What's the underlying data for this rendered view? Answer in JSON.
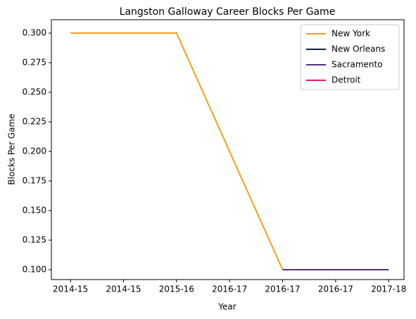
{
  "chart_data": {
    "type": "line",
    "title": "Langston Galloway Career Blocks Per Game",
    "x_label": "Year",
    "y_label": "Blocks Per Game",
    "categories": [
      "2014-15",
      "2014-15",
      "2015-16",
      "2016-17",
      "2016-17",
      "2016-17",
      "2017-18"
    ],
    "series": [
      {
        "name": "New York",
        "color": "#f5a01e",
        "values": [
          0.3,
          0.3,
          0.3,
          0.2,
          0.1,
          null,
          null
        ]
      },
      {
        "name": "New Orleans",
        "color": "#0c2340",
        "values": [
          null,
          null,
          null,
          null,
          0.1,
          null,
          null
        ]
      },
      {
        "name": "Sacramento",
        "color": "#5a2d81",
        "values": [
          null,
          null,
          null,
          null,
          0.1,
          0.1,
          0.1
        ]
      },
      {
        "name": "Detroit",
        "color": "#e31b54",
        "values": [
          null,
          null,
          null,
          null,
          null,
          null,
          0.1
        ]
      }
    ],
    "xlim": [
      -0.36,
      6.29
    ],
    "ylim": [
      0.0917,
      0.3113
    ],
    "yticks": [
      {
        "value": 0.1,
        "label": "0.100"
      },
      {
        "value": 0.125,
        "label": "0.125"
      },
      {
        "value": 0.15,
        "label": "0.150"
      },
      {
        "value": 0.175,
        "label": "0.175"
      },
      {
        "value": 0.2,
        "label": "0.200"
      },
      {
        "value": 0.225,
        "label": "0.225"
      },
      {
        "value": 0.25,
        "label": "0.250"
      },
      {
        "value": 0.275,
        "label": "0.275"
      },
      {
        "value": 0.3,
        "label": "0.300"
      }
    ],
    "legend": "upper right",
    "grid": false
  }
}
